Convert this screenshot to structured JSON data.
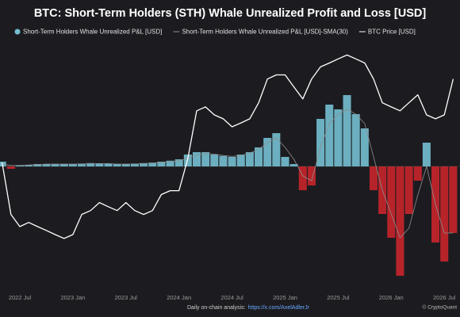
{
  "chart_data": {
    "type": "bar",
    "title": "BTC: Short-Term Holders (STH) Whale Unrealized Profit and Loss [USD]",
    "categories": [
      null,
      null,
      "2022 Jul",
      null,
      null,
      null,
      null,
      null,
      "2023 Jan",
      null,
      null,
      null,
      null,
      null,
      "2023 Jul",
      null,
      null,
      null,
      null,
      null,
      "2024 Jan",
      null,
      null,
      null,
      null,
      null,
      "2024 Jul",
      null,
      null,
      null,
      null,
      null,
      "2025 Jan",
      null,
      null,
      null,
      null,
      null,
      "2025 Jul",
      null,
      null,
      null,
      null,
      null,
      "2026 Jan",
      null,
      null,
      null,
      null,
      null,
      "2026 Jul",
      null
    ],
    "series": [
      {
        "name": "Short-Term Holders Whale Unrealized P&L [USD]",
        "type": "bar",
        "color": "#74c0d2",
        "negative_color": "#c8262b",
        "values": [
          0.1,
          -0.05,
          0.02,
          0.03,
          0.05,
          0.05,
          0.05,
          0.05,
          0.05,
          0.06,
          0.07,
          0.06,
          0.06,
          0.05,
          0.05,
          0.06,
          0.07,
          0.08,
          0.1,
          0.12,
          0.15,
          0.25,
          0.3,
          0.3,
          0.25,
          0.22,
          0.2,
          0.25,
          0.3,
          0.4,
          0.6,
          0.7,
          0.2,
          0.05,
          -0.5,
          -0.4,
          1.0,
          1.3,
          1.2,
          1.5,
          1.1,
          0.8,
          -0.5,
          -1.0,
          -1.5,
          -2.3,
          -1.0,
          -0.3,
          0.5,
          -1.6,
          -2.0,
          -1.4
        ]
      },
      {
        "name": "Short-Term Holders Whale Unrealized P&L [USD]-SMA(30)",
        "type": "line",
        "color": "#8e8e8e",
        "values": [
          0.05,
          0.02,
          0.02,
          0.03,
          0.04,
          0.05,
          0.05,
          0.05,
          0.05,
          0.05,
          0.06,
          0.06,
          0.06,
          0.05,
          0.05,
          0.05,
          0.06,
          0.07,
          0.08,
          0.1,
          0.12,
          0.18,
          0.24,
          0.27,
          0.26,
          0.23,
          0.21,
          0.23,
          0.28,
          0.36,
          0.5,
          0.6,
          0.4,
          0.15,
          -0.2,
          -0.3,
          0.4,
          0.9,
          1.1,
          1.2,
          1.1,
          0.9,
          0.2,
          -0.5,
          -1.0,
          -1.5,
          -1.3,
          -0.6,
          0.0,
          -0.8,
          -1.4,
          -1.4
        ]
      },
      {
        "name": "BTC Price [USD]",
        "type": "line",
        "axis": "y2",
        "color": "#ffffff",
        "values": [
          54800,
          28300,
          22100,
          24200,
          22100,
          20100,
          18000,
          16000,
          18000,
          28300,
          30300,
          34400,
          32300,
          30300,
          34400,
          30300,
          28300,
          30300,
          38500,
          40500,
          40500,
          56900,
          81400,
          83400,
          79300,
          77300,
          73200,
          75200,
          77300,
          85500,
          97700,
          99800,
          99800,
          93600,
          87500,
          97700,
          103900,
          105900,
          108000,
          110000,
          108000,
          105900,
          97700,
          85500,
          83400,
          81400,
          85500,
          89600,
          79300,
          77300,
          79300,
          97700
        ]
      }
    ],
    "ylim": [
      -2.5,
      3.0
    ],
    "y2lim": [
      -8000,
      126000
    ],
    "annotations": [
      "Daily on-chain analysis:",
      "https://x.com/AxelAdlerJr",
      "© CryptoQuant"
    ]
  }
}
